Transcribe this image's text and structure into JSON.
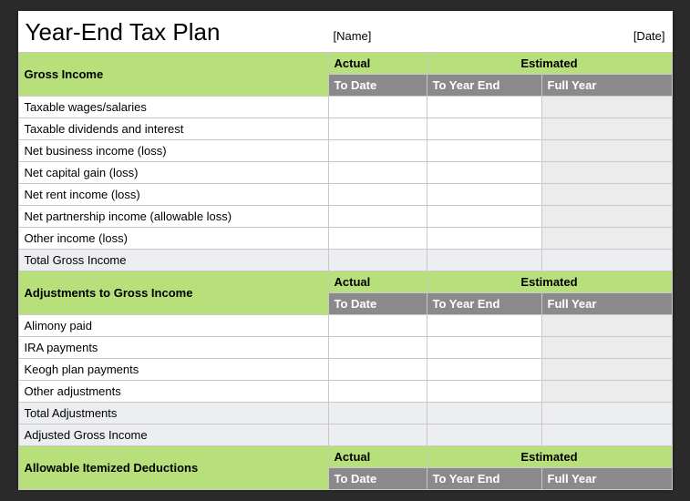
{
  "colors": {
    "page_bg": "#2b2b2b",
    "sheet_bg": "#ffffff",
    "section_green": "#b8e07a",
    "sub_gray_bg": "#8a8a8a",
    "sub_gray_text": "#ffffff",
    "total_row_bg": "#eceef2",
    "shade_bg": "#ececec",
    "border": "#c8c8c8"
  },
  "header": {
    "title": "Year-End Tax Plan",
    "name_placeholder": "[Name]",
    "date_placeholder": "[Date]"
  },
  "column_headers": {
    "actual": "Actual",
    "estimated": "Estimated",
    "to_date": "To Date",
    "to_year_end": "To Year End",
    "full_year": "Full Year"
  },
  "sections": [
    {
      "title": "Gross Income",
      "rows": [
        {
          "label": "Taxable wages/salaries",
          "actual": "",
          "to_year_end": "",
          "full_year": ""
        },
        {
          "label": "Taxable dividends and interest",
          "actual": "",
          "to_year_end": "",
          "full_year": ""
        },
        {
          "label": "Net business income (loss)",
          "actual": "",
          "to_year_end": "",
          "full_year": ""
        },
        {
          "label": "Net capital gain (loss)",
          "actual": "",
          "to_year_end": "",
          "full_year": ""
        },
        {
          "label": "Net rent income (loss)",
          "actual": "",
          "to_year_end": "",
          "full_year": ""
        },
        {
          "label": "Net partnership income (allowable loss)",
          "actual": "",
          "to_year_end": "",
          "full_year": ""
        },
        {
          "label": "Other income (loss)",
          "actual": "",
          "to_year_end": "",
          "full_year": ""
        }
      ],
      "totals": [
        {
          "label": "Total Gross Income",
          "actual": "",
          "to_year_end": "",
          "full_year": ""
        }
      ]
    },
    {
      "title": "Adjustments to Gross Income",
      "rows": [
        {
          "label": "Alimony paid",
          "actual": "",
          "to_year_end": "",
          "full_year": ""
        },
        {
          "label": "IRA payments",
          "actual": "",
          "to_year_end": "",
          "full_year": ""
        },
        {
          "label": "Keogh plan payments",
          "actual": "",
          "to_year_end": "",
          "full_year": ""
        },
        {
          "label": "Other adjustments",
          "actual": "",
          "to_year_end": "",
          "full_year": ""
        }
      ],
      "totals": [
        {
          "label": "Total Adjustments",
          "actual": "",
          "to_year_end": "",
          "full_year": ""
        },
        {
          "label": "Adjusted Gross Income",
          "actual": "",
          "to_year_end": "",
          "full_year": ""
        }
      ]
    },
    {
      "title": "Allowable Itemized Deductions",
      "rows": [],
      "totals": []
    }
  ]
}
